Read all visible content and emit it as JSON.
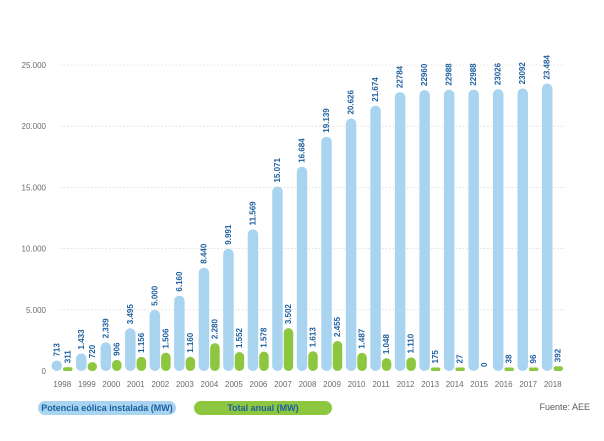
{
  "chart_data": {
    "type": "bar",
    "categories": [
      "1998",
      "1999",
      "2000",
      "2001",
      "2002",
      "2003",
      "2004",
      "2005",
      "2006",
      "2007",
      "2008",
      "2009",
      "2010",
      "2011",
      "2012",
      "2013",
      "2014",
      "2015",
      "2016",
      "2017",
      "2018"
    ],
    "series": [
      {
        "name": "Potencia eólica instalada (MW)",
        "values": [
          713,
          1433,
          2339,
          3495,
          5000,
          6160,
          8440,
          9991,
          11569,
          15071,
          16684,
          19139,
          20626,
          21674,
          22784,
          22960,
          22988,
          22988,
          23026,
          23092,
          23484
        ],
        "labels": [
          "713",
          "1.433",
          "2.339",
          "3.495",
          "5.000",
          "6.160",
          "8.440",
          "9.991",
          "11.569",
          "15.071",
          "16.684",
          "19.139",
          "20.626",
          "21.674",
          "22784",
          "22960",
          "22988",
          "22988",
          "23026",
          "23092",
          "23.484"
        ],
        "color": "#a8d4f0"
      },
      {
        "name": "Total anual (MW)",
        "values": [
          311,
          720,
          906,
          1156,
          1506,
          1160,
          2280,
          1552,
          1578,
          3502,
          1613,
          2455,
          1487,
          1048,
          1110,
          175,
          27,
          0,
          38,
          96,
          392
        ],
        "labels": [
          "311",
          "720",
          "906",
          "1.156",
          "1.506",
          "1.160",
          "2.280",
          "1.552",
          "1.578",
          "3.502",
          "1.613",
          "2.455",
          "1.487",
          "1.048",
          "1.110",
          "175",
          "27",
          "0",
          "38",
          "96",
          "392"
        ],
        "color": "#8dc63f"
      }
    ],
    "yticks": [
      0,
      5000,
      10000,
      15000,
      20000,
      25000
    ],
    "ytick_labels": [
      "0",
      "5.000",
      "10.000",
      "15.000",
      "20.000",
      "25.000"
    ],
    "ylim": [
      0,
      25000
    ],
    "grid": true,
    "legend_position": "bottom-left",
    "source": "Fuente: AEE"
  },
  "colors": {
    "label_text": "#1d5fa0",
    "axis_text": "#6b6b6b",
    "grid": "#cfcfcf"
  }
}
